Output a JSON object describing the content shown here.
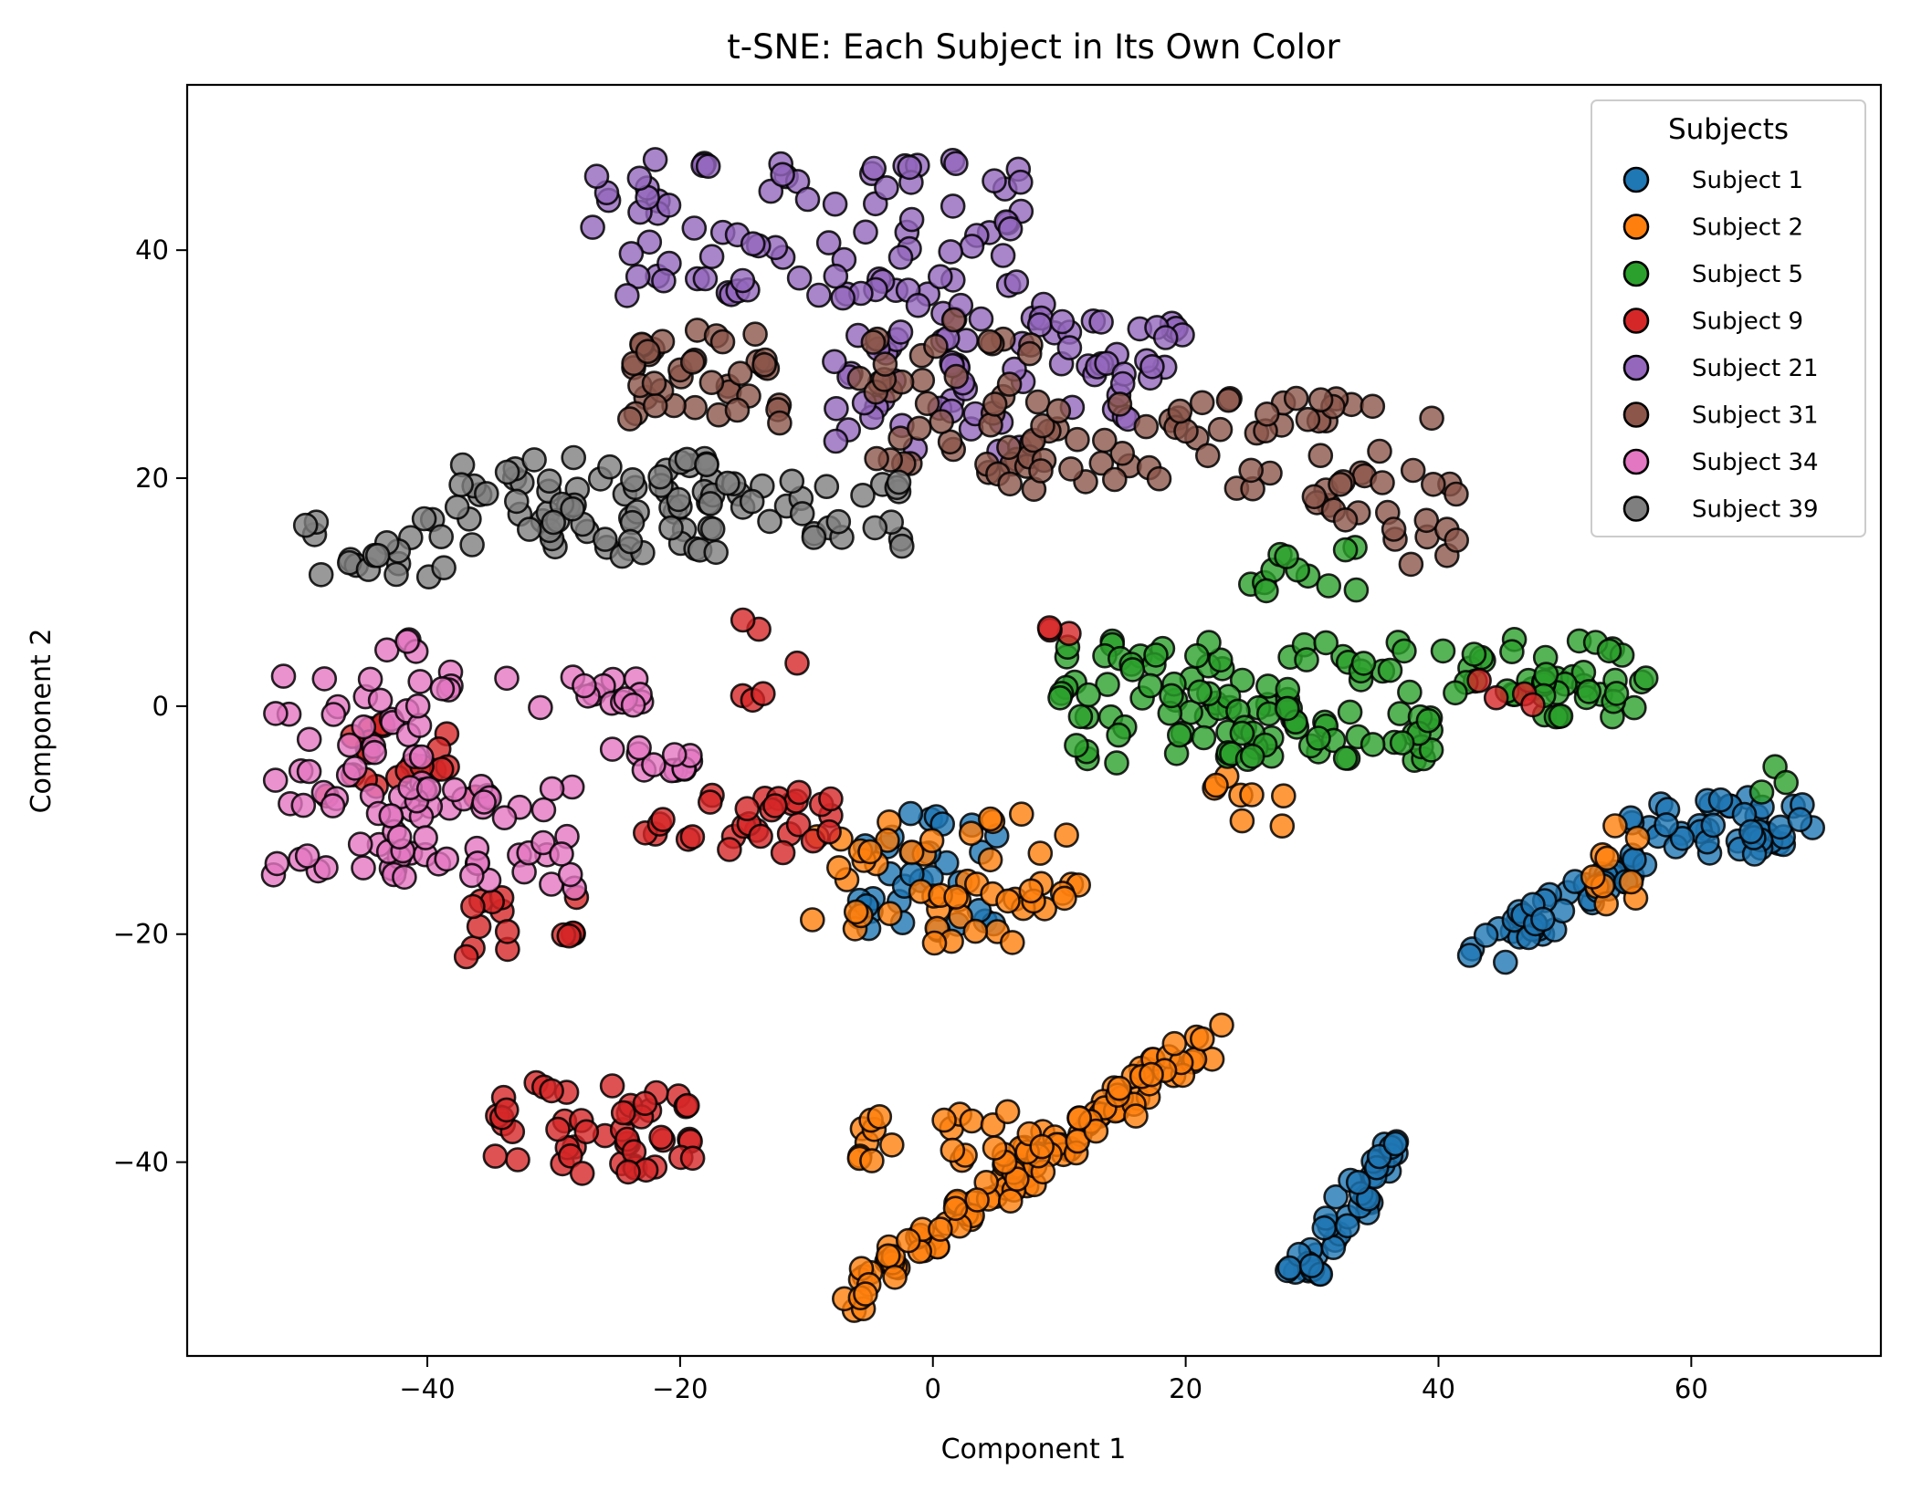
{
  "chart_data": {
    "type": "scatter",
    "title": "t-SNE: Each Subject in Its Own Color",
    "xlabel": "Component 1",
    "ylabel": "Component 2",
    "xlim": [
      -59,
      75
    ],
    "ylim": [
      -57,
      54.5
    ],
    "xticks": [
      -40,
      -20,
      0,
      20,
      40,
      60
    ],
    "yticks": [
      -40,
      -20,
      0,
      20,
      40
    ],
    "xtick_labels": [
      "−40",
      "−20",
      "0",
      "20",
      "40",
      "60"
    ],
    "ytick_labels": [
      "−40",
      "−20",
      "0",
      "20",
      "40"
    ],
    "grid": false,
    "legend": {
      "title": "Subjects",
      "placement": "top-right"
    },
    "series": [
      {
        "name": "Subject 1",
        "color": "#1f77b4",
        "clusters": [
          {
            "x": [
              55,
              70
            ],
            "y": [
              -13,
              -8
            ],
            "n": 45
          },
          {
            "x": [
              43,
              57
            ],
            "y": [
              -22,
              -13
            ],
            "n": 45,
            "line": true
          },
          {
            "x": [
              29,
              36
            ],
            "y": [
              -51,
              -39
            ],
            "n": 45,
            "line": true
          },
          {
            "x": [
              -6,
              6
            ],
            "y": [
              -20,
              -9
            ],
            "n": 32
          }
        ]
      },
      {
        "name": "Subject 2",
        "color": "#ff7f0e",
        "clusters": [
          {
            "x": [
              -7,
              22
            ],
            "y": [
              -52,
              -29
            ],
            "n": 110,
            "line": true
          },
          {
            "x": [
              -6,
              10
            ],
            "y": [
              -40,
              -35
            ],
            "n": 25
          },
          {
            "x": [
              -10,
              12
            ],
            "y": [
              -20,
              -9
            ],
            "n": 40
          },
          {
            "x": [
              0,
              8
            ],
            "y": [
              -21,
              -16
            ],
            "n": 12
          },
          {
            "x": [
              49,
              56
            ],
            "y": [
              -18,
              -10
            ],
            "n": 10
          },
          {
            "x": [
              22,
              28
            ],
            "y": [
              -11,
              -6
            ],
            "n": 8
          }
        ]
      },
      {
        "name": "Subject 5",
        "color": "#2ca02c",
        "clusters": [
          {
            "x": [
              10,
              30
            ],
            "y": [
              -5,
              6
            ],
            "n": 70
          },
          {
            "x": [
              24,
              40
            ],
            "y": [
              -5,
              0
            ],
            "n": 35
          },
          {
            "x": [
              29,
              56
            ],
            "y": [
              1,
              6
            ],
            "n": 40
          },
          {
            "x": [
              48,
              57
            ],
            "y": [
              -1,
              3
            ],
            "n": 18
          },
          {
            "x": [
              25,
              35
            ],
            "y": [
              10,
              14
            ],
            "n": 12
          },
          {
            "x": [
              65,
              68
            ],
            "y": [
              -8,
              -5
            ],
            "n": 3
          }
        ]
      },
      {
        "name": "Subject 9",
        "color": "#d62728",
        "clusters": [
          {
            "x": [
              -36,
              -19
            ],
            "y": [
              -41,
              -33
            ],
            "n": 50
          },
          {
            "x": [
              -23,
              -8
            ],
            "y": [
              -13,
              -7
            ],
            "n": 30
          },
          {
            "x": [
              -48,
              -36
            ],
            "y": [
              -8,
              -1
            ],
            "n": 22
          },
          {
            "x": [
              -38,
              -28
            ],
            "y": [
              -22,
              -16
            ],
            "n": 15
          },
          {
            "x": [
              -16,
              -9
            ],
            "y": [
              0,
              9
            ],
            "n": 6
          },
          {
            "x": [
              9,
              11
            ],
            "y": [
              6,
              7
            ],
            "n": 3
          },
          {
            "x": [
              43,
              48
            ],
            "y": [
              0,
              3
            ],
            "n": 4
          }
        ]
      },
      {
        "name": "Subject 21",
        "color": "#9467bd",
        "clusters": [
          {
            "x": [
              -28,
              8
            ],
            "y": [
              36,
              48
            ],
            "n": 90
          },
          {
            "x": [
              -8,
              10
            ],
            "y": [
              22,
              36
            ],
            "n": 50
          },
          {
            "x": [
              10,
              20
            ],
            "y": [
              25,
              35
            ],
            "n": 30
          }
        ]
      },
      {
        "name": "Subject 31",
        "color": "#8c564b",
        "clusters": [
          {
            "x": [
              -24,
              -12
            ],
            "y": [
              24,
              33
            ],
            "n": 40
          },
          {
            "x": [
              -6,
              8
            ],
            "y": [
              20,
              34
            ],
            "n": 40
          },
          {
            "x": [
              6,
              40
            ],
            "y": [
              19,
              27
            ],
            "n": 60
          },
          {
            "x": [
              30,
              42
            ],
            "y": [
              12,
              20
            ],
            "n": 22
          }
        ]
      },
      {
        "name": "Subject 34",
        "color": "#e377c2",
        "clusters": [
          {
            "x": [
              -53,
              -40
            ],
            "y": [
              -15,
              3
            ],
            "n": 50
          },
          {
            "x": [
              -44,
              -28
            ],
            "y": [
              -16,
              -7
            ],
            "n": 45
          },
          {
            "x": [
              -45,
              -38
            ],
            "y": [
              0,
              6
            ],
            "n": 10
          },
          {
            "x": [
              -34,
              -23
            ],
            "y": [
              -1,
              3
            ],
            "n": 15
          },
          {
            "x": [
              -26,
              -19
            ],
            "y": [
              -6,
              -3
            ],
            "n": 12
          }
        ]
      },
      {
        "name": "Subject 39",
        "color": "#7f7f7f",
        "clusters": [
          {
            "x": [
              -50,
              -38
            ],
            "y": [
              11,
              17
            ],
            "n": 20
          },
          {
            "x": [
              -38,
              -17
            ],
            "y": [
              13,
              22
            ],
            "n": 70
          },
          {
            "x": [
              -18,
              -2
            ],
            "y": [
              14,
              20
            ],
            "n": 30
          }
        ]
      }
    ]
  }
}
